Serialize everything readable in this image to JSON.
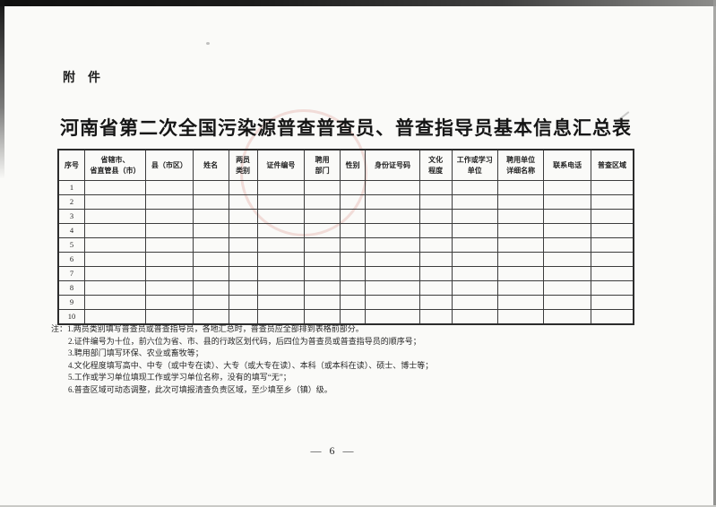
{
  "page": {
    "attachment_label": "附　件",
    "title": "河南省第二次全国污染源普查普查员、普查指导员基本信息汇总表",
    "page_number": "— 6 —"
  },
  "table": {
    "columns": [
      {
        "label": "序号",
        "width": 4.6
      },
      {
        "label": "省辖市、\n省直管县（市）",
        "width": 10.6
      },
      {
        "label": "县（市区）",
        "width": 8.2
      },
      {
        "label": "姓名",
        "width": 6.2
      },
      {
        "label": "两员\n类别",
        "width": 5.0
      },
      {
        "label": "证件编号",
        "width": 8.2
      },
      {
        "label": "聘用\n部门",
        "width": 6.2
      },
      {
        "label": "性别",
        "width": 4.4
      },
      {
        "label": "身份证号码",
        "width": 9.4
      },
      {
        "label": "文化\n程度",
        "width": 5.6
      },
      {
        "label": "工作或学习\n单位",
        "width": 8.0
      },
      {
        "label": "聘用单位\n详细名称",
        "width": 8.0
      },
      {
        "label": "联系电话",
        "width": 8.2
      },
      {
        "label": "普查区域",
        "width": 7.4
      }
    ],
    "row_numbers": [
      "1",
      "2",
      "3",
      "4",
      "5",
      "6",
      "7",
      "8",
      "9",
      "10"
    ],
    "empty_cell": ""
  },
  "notes": {
    "prefix": "注：",
    "items": [
      "1.两员类别填写普查员或普查指导员，各地汇总时，普查员应全部排到表格前部分。",
      "2.证件编号为十位，前六位为省、市、县的行政区划代码，后四位为普查员或普查指导员的顺序号；",
      "3.聘用部门填写环保、农业或畜牧等；",
      "4.文化程度填写高中、中专（或中专在读）、大专（或大专在读）、本科（或本科在读）、硕士、博士等；",
      "5.工作或学习单位填现工作或学习单位名称，没有的填写“无”；",
      "6.普查区域可动态调整，此次可填报清查负责区域，至少填至乡（镇）级。"
    ]
  },
  "seal": {
    "shape": "circle-stamp",
    "color": "#c6483c",
    "star_glyph": "★"
  },
  "colors": {
    "paper": "#fafaf8",
    "ink": "#1d1d1d",
    "table_line": "#3c3c3c"
  }
}
